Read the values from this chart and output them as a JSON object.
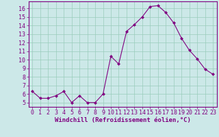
{
  "x": [
    0,
    1,
    2,
    3,
    4,
    5,
    6,
    7,
    8,
    9,
    10,
    11,
    12,
    13,
    14,
    15,
    16,
    17,
    18,
    19,
    20,
    21,
    22,
    23
  ],
  "y": [
    6.3,
    5.5,
    5.5,
    5.8,
    6.3,
    5.0,
    5.8,
    5.0,
    5.0,
    6.0,
    10.4,
    9.5,
    13.3,
    14.1,
    15.0,
    16.2,
    16.3,
    15.5,
    14.3,
    12.5,
    11.1,
    10.1,
    8.9,
    8.3
  ],
  "line_color": "#800080",
  "marker": "D",
  "marker_size": 2,
  "bg_color": "#cce8e8",
  "grid_color": "#99ccbb",
  "xlabel": "Windchill (Refroidissement éolien,°C)",
  "xlabel_fontsize": 6.5,
  "tick_fontsize": 6,
  "xlim": [
    -0.5,
    23.5
  ],
  "ylim": [
    4.5,
    16.8
  ],
  "yticks": [
    5,
    6,
    7,
    8,
    9,
    10,
    11,
    12,
    13,
    14,
    15,
    16
  ],
  "xticks": [
    0,
    1,
    2,
    3,
    4,
    5,
    6,
    7,
    8,
    9,
    10,
    11,
    12,
    13,
    14,
    15,
    16,
    17,
    18,
    19,
    20,
    21,
    22,
    23
  ],
  "spine_color": "#800080",
  "tick_color": "#800080"
}
